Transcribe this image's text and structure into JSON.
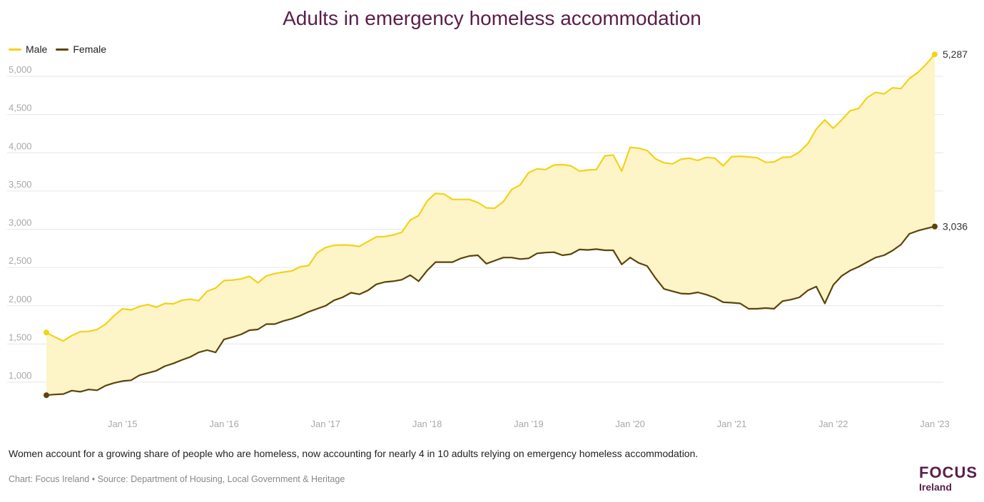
{
  "title": "Adults in emergency homeless accommodation",
  "legend": {
    "male": "Male",
    "female": "Female"
  },
  "colors": {
    "male": "#f2d318",
    "female": "#5c4409",
    "fill": "#fdf4c7",
    "grid": "#e6e6e6",
    "tick": "#a8a8a8",
    "title": "#5a1e4a"
  },
  "caption": "Women account for a growing share of people who are homeless, now accounting for nearly 4 in 10 adults relying on emergency homeless accommodation.",
  "source": "Chart: Focus Ireland • Source: Department of Housing, Local Government & Heritage",
  "logo": {
    "line1": "FOCUS",
    "line2": "Ireland"
  },
  "chart_data": {
    "type": "line",
    "title": "Adults in emergency homeless accommodation",
    "x_start": "2014-04",
    "x_ticks": [
      "Jan '15",
      "Jan '16",
      "Jan '17",
      "Jan '18",
      "Jan '19",
      "Jan '20",
      "Jan '21",
      "Jan '22",
      "Jan '23"
    ],
    "y_ticks": [
      1000,
      1500,
      2000,
      2500,
      3000,
      3500,
      4000,
      4500,
      5000
    ],
    "y_tick_labels": [
      "1,000",
      "1,500",
      "2,000",
      "2,500",
      "3,000",
      "3,500",
      "4,000",
      "4,500",
      "5,000"
    ],
    "ylim": [
      750,
      5400
    ],
    "grid": true,
    "legend_position": "top-left",
    "end_labels": {
      "male": "5,287",
      "female": "3,036"
    },
    "series": [
      {
        "name": "Male",
        "values": [
          1650,
          1590,
          1540,
          1610,
          1660,
          1665,
          1690,
          1760,
          1870,
          1960,
          1945,
          1990,
          2015,
          1980,
          2030,
          2025,
          2070,
          2085,
          2065,
          2190,
          2230,
          2330,
          2335,
          2350,
          2385,
          2300,
          2390,
          2420,
          2440,
          2455,
          2510,
          2525,
          2690,
          2760,
          2790,
          2795,
          2790,
          2775,
          2840,
          2900,
          2905,
          2925,
          2960,
          3120,
          3180,
          3370,
          3470,
          3460,
          3390,
          3390,
          3390,
          3350,
          3280,
          3275,
          3360,
          3520,
          3580,
          3740,
          3790,
          3780,
          3840,
          3845,
          3830,
          3760,
          3775,
          3780,
          3960,
          3970,
          3760,
          4070,
          4060,
          4030,
          3920,
          3870,
          3855,
          3915,
          3930,
          3900,
          3940,
          3930,
          3830,
          3950,
          3955,
          3945,
          3935,
          3875,
          3880,
          3940,
          3945,
          4010,
          4120,
          4310,
          4430,
          4320,
          4430,
          4550,
          4580,
          4720,
          4790,
          4770,
          4850,
          4840,
          4970,
          5050,
          5160,
          5287
        ]
      },
      {
        "name": "Female",
        "values": [
          830,
          840,
          845,
          890,
          875,
          905,
          895,
          955,
          990,
          1015,
          1025,
          1090,
          1120,
          1150,
          1210,
          1245,
          1290,
          1330,
          1390,
          1420,
          1390,
          1560,
          1590,
          1625,
          1680,
          1690,
          1760,
          1760,
          1800,
          1830,
          1870,
          1920,
          1960,
          2000,
          2070,
          2110,
          2170,
          2150,
          2200,
          2280,
          2310,
          2320,
          2340,
          2400,
          2320,
          2460,
          2570,
          2570,
          2570,
          2620,
          2650,
          2660,
          2550,
          2590,
          2630,
          2630,
          2610,
          2620,
          2685,
          2695,
          2700,
          2660,
          2675,
          2735,
          2730,
          2740,
          2725,
          2725,
          2540,
          2630,
          2560,
          2520,
          2360,
          2220,
          2190,
          2160,
          2155,
          2175,
          2145,
          2105,
          2045,
          2040,
          2030,
          1960,
          1960,
          1970,
          1960,
          2060,
          2080,
          2110,
          2200,
          2250,
          2030,
          2270,
          2390,
          2460,
          2510,
          2570,
          2630,
          2660,
          2720,
          2800,
          2940,
          2980,
          3010,
          3036
        ]
      }
    ]
  }
}
